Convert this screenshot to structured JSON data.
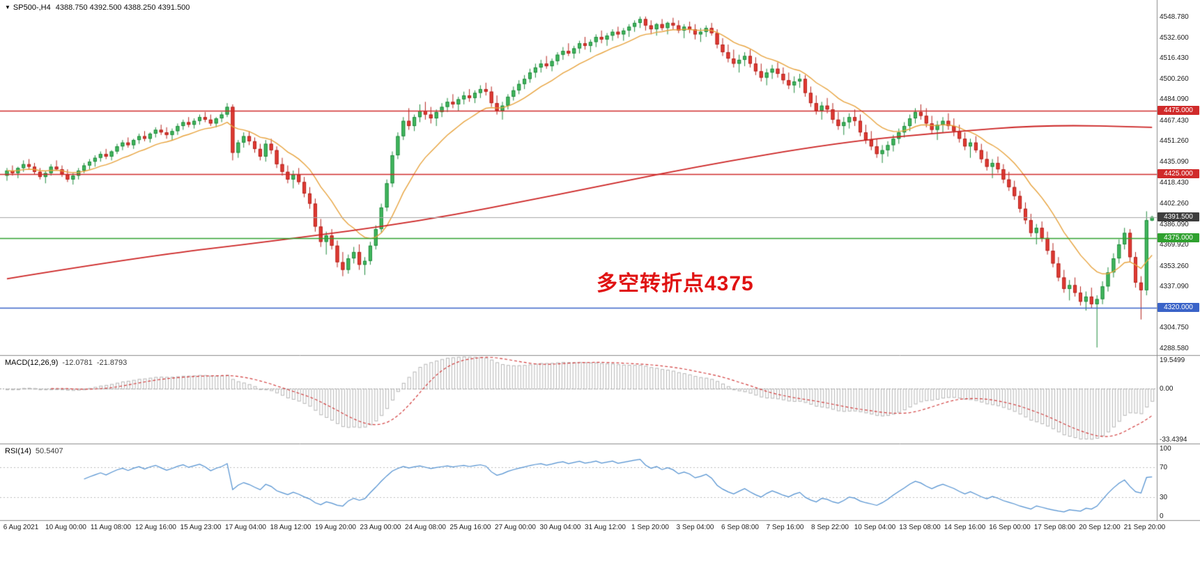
{
  "window": {
    "symbol_marker": "▼",
    "symbol": "SP500-,H4",
    "ohlc_line": "4388.750 4392.500 4388.250 4391.500"
  },
  "annotation": {
    "text": "多空转折点4375",
    "color": "#e01212"
  },
  "price_axis": {
    "ticks": [
      "4548.780",
      "4532.600",
      "4516.430",
      "4500.260",
      "4484.090",
      "4467.430",
      "4451.260",
      "4435.090",
      "4418.430",
      "4402.260",
      "4386.090",
      "4369.920",
      "4353.260",
      "4337.090",
      "4320.920",
      "4304.750",
      "4288.580"
    ]
  },
  "time_axis": {
    "labels": [
      "6 Aug 2021",
      "10 Aug 00:00",
      "11 Aug 08:00",
      "12 Aug 16:00",
      "15 Aug 23:00",
      "17 Aug 04:00",
      "18 Aug 12:00",
      "19 Aug 20:00",
      "23 Aug 00:00",
      "24 Aug 08:00",
      "25 Aug 16:00",
      "27 Aug 00:00",
      "30 Aug 04:00",
      "31 Aug 12:00",
      "1 Sep 20:00",
      "3 Sep 04:00",
      "6 Sep 08:00",
      "7 Sep 16:00",
      "8 Sep 22:00",
      "10 Sep 04:00",
      "13 Sep 08:00",
      "14 Sep 16:00",
      "16 Sep 00:00",
      "17 Sep 08:00",
      "20 Sep 12:00",
      "21 Sep 20:00"
    ]
  },
  "levels": [
    {
      "label": "4475.000",
      "price": 4475.0,
      "color": "#d02a2a"
    },
    {
      "label": "4425.000",
      "price": 4425.0,
      "color": "#d02a2a"
    },
    {
      "label": "4375.000",
      "price": 4375.0,
      "color": "#2fa12f"
    },
    {
      "label": "4320.000",
      "price": 4320.0,
      "color": "#3a63c8"
    }
  ],
  "current_price": {
    "label": "4391.500",
    "price": 4391.5,
    "line_color": "#a6a6a6",
    "tag_bg": "#3d3d3d"
  },
  "macd_panel": {
    "title": "MACD(12,26,9)",
    "main_value": "-12.0781",
    "signal_value": "-21.8793",
    "axis_ticks": [
      {
        "label": "19.5499",
        "value": 19.5499
      },
      {
        "label": "0.00",
        "value": 0
      },
      {
        "label": "-33.4394",
        "value": -33.4394
      }
    ],
    "range": [
      -35,
      21
    ]
  },
  "rsi_panel": {
    "title": "RSI(14)",
    "value": "50.5407",
    "axis_ticks": [
      {
        "label": "100",
        "value": 100
      },
      {
        "label": "70",
        "value": 70
      },
      {
        "label": "30",
        "value": 30
      },
      {
        "label": "0",
        "value": 0
      }
    ],
    "levels": [
      70,
      30
    ]
  },
  "colors": {
    "bull_fill": "#42b85e",
    "bull_stroke": "#1e8a3c",
    "bear_fill": "#e13b34",
    "bear_stroke": "#b5221c",
    "fast_ma": "#e8a33d",
    "slow_ma": "#cc2222",
    "macd_hist": "#b6b6b6",
    "macd_signal": "#d23b3b",
    "rsi_line": "#4f8fd0",
    "grid_dotted": "#bdbdbd",
    "separator": "#8c8c8c",
    "axis_text": "#1c1c1c"
  },
  "chart_data": {
    "type": "candlestick",
    "symbol": "SP500-",
    "timeframe": "H4",
    "title": "SP500-,H4 4388.750 4392.500 4388.250 4391.500",
    "visible_price_range": [
      4283,
      4562
    ],
    "ohlc_current": {
      "open": 4388.75,
      "high": 4392.5,
      "low": 4388.25,
      "close": 4391.5
    },
    "hlines": [
      4475.0,
      4425.0,
      4375.0,
      4320.0
    ],
    "candles": [
      [
        4424,
        4430,
        4420,
        4428
      ],
      [
        4428,
        4432,
        4424,
        4426
      ],
      [
        4426,
        4431,
        4422,
        4430
      ],
      [
        4430,
        4436,
        4427,
        4433
      ],
      [
        4433,
        4437,
        4429,
        4431
      ],
      [
        4431,
        4434,
        4425,
        4427
      ],
      [
        4427,
        4430,
        4421,
        4423
      ],
      [
        4423,
        4428,
        4418,
        4426
      ],
      [
        4426,
        4433,
        4424,
        4431
      ],
      [
        4431,
        4436,
        4428,
        4429
      ],
      [
        4429,
        4432,
        4423,
        4425
      ],
      [
        4425,
        4429,
        4419,
        4421
      ],
      [
        4421,
        4426,
        4417,
        4424
      ],
      [
        4424,
        4430,
        4421,
        4428
      ],
      [
        4428,
        4434,
        4426,
        4432
      ],
      [
        4432,
        4437,
        4429,
        4435
      ],
      [
        4435,
        4440,
        4431,
        4438
      ],
      [
        4438,
        4443,
        4435,
        4441
      ],
      [
        4441,
        4445,
        4437,
        4439
      ],
      [
        4439,
        4444,
        4436,
        4443
      ],
      [
        4443,
        4449,
        4441,
        4447
      ],
      [
        4447,
        4452,
        4444,
        4450
      ],
      [
        4450,
        4454,
        4446,
        4448
      ],
      [
        4448,
        4453,
        4445,
        4452
      ],
      [
        4452,
        4457,
        4449,
        4455
      ],
      [
        4455,
        4459,
        4451,
        4453
      ],
      [
        4453,
        4458,
        4450,
        4457
      ],
      [
        4457,
        4462,
        4454,
        4460
      ],
      [
        4460,
        4464,
        4456,
        4458
      ],
      [
        4458,
        4462,
        4453,
        4456
      ],
      [
        4456,
        4461,
        4452,
        4459
      ],
      [
        4459,
        4465,
        4456,
        4463
      ],
      [
        4463,
        4468,
        4460,
        4466
      ],
      [
        4466,
        4470,
        4462,
        4464
      ],
      [
        4464,
        4469,
        4461,
        4467
      ],
      [
        4467,
        4472,
        4464,
        4470
      ],
      [
        4470,
        4474,
        4466,
        4468
      ],
      [
        4468,
        4472,
        4463,
        4465
      ],
      [
        4465,
        4470,
        4462,
        4469
      ],
      [
        4469,
        4474,
        4466,
        4472
      ],
      [
        4472,
        4481,
        4470,
        4478
      ],
      [
        4478,
        4480,
        4436,
        4442
      ],
      [
        4442,
        4452,
        4438,
        4450
      ],
      [
        4450,
        4458,
        4446,
        4455
      ],
      [
        4455,
        4459,
        4448,
        4451
      ],
      [
        4451,
        4454,
        4442,
        4445
      ],
      [
        4445,
        4449,
        4436,
        4439
      ],
      [
        4439,
        4452,
        4435,
        4449
      ],
      [
        4449,
        4453,
        4441,
        4444
      ],
      [
        4444,
        4447,
        4430,
        4433
      ],
      [
        4433,
        4438,
        4424,
        4427
      ],
      [
        4427,
        4432,
        4418,
        4421
      ],
      [
        4421,
        4428,
        4414,
        4425
      ],
      [
        4425,
        4430,
        4417,
        4419
      ],
      [
        4419,
        4423,
        4407,
        4410
      ],
      [
        4410,
        4415,
        4398,
        4402
      ],
      [
        4402,
        4406,
        4380,
        4384
      ],
      [
        4384,
        4390,
        4368,
        4372
      ],
      [
        4372,
        4380,
        4362,
        4377
      ],
      [
        4377,
        4382,
        4366,
        4369
      ],
      [
        4369,
        4373,
        4352,
        4356
      ],
      [
        4356,
        4364,
        4345,
        4350
      ],
      [
        4350,
        4362,
        4347,
        4359
      ],
      [
        4359,
        4368,
        4355,
        4364
      ],
      [
        4364,
        4370,
        4350,
        4354
      ],
      [
        4354,
        4360,
        4346,
        4357
      ],
      [
        4357,
        4372,
        4354,
        4369
      ],
      [
        4369,
        4385,
        4366,
        4382
      ],
      [
        4382,
        4402,
        4379,
        4399
      ],
      [
        4399,
        4421,
        4396,
        4418
      ],
      [
        4418,
        4443,
        4415,
        4440
      ],
      [
        4440,
        4458,
        4437,
        4455
      ],
      [
        4455,
        4470,
        4452,
        4467
      ],
      [
        4467,
        4477,
        4460,
        4463
      ],
      [
        4463,
        4472,
        4459,
        4470
      ],
      [
        4470,
        4480,
        4466,
        4475
      ],
      [
        4475,
        4482,
        4468,
        4472
      ],
      [
        4472,
        4478,
        4465,
        4469
      ],
      [
        4469,
        4476,
        4463,
        4474
      ],
      [
        4474,
        4481,
        4470,
        4478
      ],
      [
        4478,
        4485,
        4474,
        4482
      ],
      [
        4482,
        4488,
        4477,
        4480
      ],
      [
        4480,
        4486,
        4475,
        4484
      ],
      [
        4484,
        4490,
        4480,
        4487
      ],
      [
        4487,
        4492,
        4482,
        4485
      ],
      [
        4485,
        4491,
        4481,
        4489
      ],
      [
        4489,
        4495,
        4485,
        4492
      ],
      [
        4492,
        4497,
        4487,
        4490
      ],
      [
        4490,
        4494,
        4478,
        4481
      ],
      [
        4481,
        4487,
        4472,
        4475
      ],
      [
        4475,
        4482,
        4468,
        4479
      ],
      [
        4479,
        4488,
        4476,
        4486
      ],
      [
        4486,
        4494,
        4483,
        4491
      ],
      [
        4491,
        4499,
        4488,
        4496
      ],
      [
        4496,
        4503,
        4492,
        4500
      ],
      [
        4500,
        4508,
        4497,
        4505
      ],
      [
        4505,
        4512,
        4501,
        4509
      ],
      [
        4509,
        4515,
        4505,
        4512
      ],
      [
        4512,
        4518,
        4508,
        4510
      ],
      [
        4510,
        4516,
        4506,
        4514
      ],
      [
        4514,
        4521,
        4511,
        4519
      ],
      [
        4519,
        4525,
        4515,
        4522
      ],
      [
        4522,
        4528,
        4518,
        4520
      ],
      [
        4520,
        4526,
        4516,
        4524
      ],
      [
        4524,
        4530,
        4520,
        4528
      ],
      [
        4528,
        4533,
        4523,
        4526
      ],
      [
        4526,
        4531,
        4521,
        4529
      ],
      [
        4529,
        4535,
        4525,
        4533
      ],
      [
        4533,
        4538,
        4528,
        4531
      ],
      [
        4531,
        4536,
        4526,
        4534
      ],
      [
        4534,
        4539,
        4530,
        4537
      ],
      [
        4537,
        4541,
        4532,
        4535
      ],
      [
        4535,
        4540,
        4530,
        4538
      ],
      [
        4538,
        4543,
        4533,
        4541
      ],
      [
        4541,
        4546,
        4537,
        4544
      ],
      [
        4544,
        4549,
        4540,
        4547
      ],
      [
        4547,
        4549,
        4538,
        4542
      ],
      [
        4542,
        4546,
        4535,
        4539
      ],
      [
        4539,
        4544,
        4534,
        4543
      ],
      [
        4543,
        4547,
        4538,
        4540
      ],
      [
        4540,
        4545,
        4535,
        4544
      ],
      [
        4544,
        4548,
        4539,
        4542
      ],
      [
        4542,
        4546,
        4536,
        4538
      ],
      [
        4538,
        4543,
        4532,
        4541
      ],
      [
        4541,
        4545,
        4536,
        4539
      ],
      [
        4539,
        4543,
        4531,
        4535
      ],
      [
        4535,
        4540,
        4529,
        4537
      ],
      [
        4537,
        4542,
        4533,
        4540
      ],
      [
        4540,
        4544,
        4534,
        4536
      ],
      [
        4536,
        4539,
        4524,
        4527
      ],
      [
        4527,
        4532,
        4518,
        4521
      ],
      [
        4521,
        4527,
        4513,
        4516
      ],
      [
        4516,
        4523,
        4509,
        4512
      ],
      [
        4512,
        4519,
        4505,
        4515
      ],
      [
        4515,
        4521,
        4510,
        4518
      ],
      [
        4518,
        4523,
        4509,
        4512
      ],
      [
        4512,
        4517,
        4503,
        4506
      ],
      [
        4506,
        4512,
        4498,
        4501
      ],
      [
        4501,
        4508,
        4495,
        4505
      ],
      [
        4505,
        4511,
        4500,
        4508
      ],
      [
        4508,
        4513,
        4501,
        4504
      ],
      [
        4504,
        4509,
        4496,
        4499
      ],
      [
        4499,
        4505,
        4492,
        4495
      ],
      [
        4495,
        4502,
        4489,
        4498
      ],
      [
        4498,
        4504,
        4493,
        4500
      ],
      [
        4500,
        4503,
        4486,
        4489
      ],
      [
        4489,
        4494,
        4478,
        4481
      ],
      [
        4481,
        4487,
        4472,
        4475
      ],
      [
        4475,
        4482,
        4468,
        4479
      ],
      [
        4479,
        4485,
        4473,
        4476
      ],
      [
        4476,
        4481,
        4465,
        4468
      ],
      [
        4468,
        4474,
        4460,
        4463
      ],
      [
        4463,
        4470,
        4456,
        4466
      ],
      [
        4466,
        4473,
        4461,
        4470
      ],
      [
        4470,
        4476,
        4463,
        4467
      ],
      [
        4467,
        4472,
        4455,
        4458
      ],
      [
        4458,
        4464,
        4449,
        4452
      ],
      [
        4452,
        4459,
        4444,
        4447
      ],
      [
        4447,
        4453,
        4438,
        4441
      ],
      [
        4441,
        4448,
        4434,
        4444
      ],
      [
        4444,
        4451,
        4439,
        4448
      ],
      [
        4448,
        4456,
        4443,
        4453
      ],
      [
        4453,
        4461,
        4449,
        4458
      ],
      [
        4458,
        4466,
        4454,
        4463
      ],
      [
        4463,
        4472,
        4459,
        4469
      ],
      [
        4469,
        4477,
        4465,
        4474
      ],
      [
        4474,
        4480,
        4468,
        4471
      ],
      [
        4471,
        4477,
        4462,
        4465
      ],
      [
        4465,
        4471,
        4457,
        4460
      ],
      [
        4460,
        4467,
        4452,
        4464
      ],
      [
        4464,
        4470,
        4458,
        4467
      ],
      [
        4467,
        4473,
        4460,
        4463
      ],
      [
        4463,
        4469,
        4455,
        4459
      ],
      [
        4459,
        4464,
        4450,
        4453
      ],
      [
        4453,
        4458,
        4444,
        4447
      ],
      [
        4447,
        4453,
        4438,
        4450
      ],
      [
        4450,
        4455,
        4442,
        4444
      ],
      [
        4444,
        4449,
        4434,
        4437
      ],
      [
        4437,
        4443,
        4428,
        4431
      ],
      [
        4431,
        4437,
        4422,
        4434
      ],
      [
        4434,
        4439,
        4426,
        4429
      ],
      [
        4429,
        4433,
        4418,
        4421
      ],
      [
        4421,
        4427,
        4412,
        4415
      ],
      [
        4415,
        4420,
        4405,
        4408
      ],
      [
        4408,
        4412,
        4395,
        4398
      ],
      [
        4398,
        4403,
        4386,
        4389
      ],
      [
        4389,
        4394,
        4376,
        4379
      ],
      [
        4379,
        4386,
        4370,
        4383
      ],
      [
        4383,
        4388,
        4372,
        4375
      ],
      [
        4375,
        4380,
        4362,
        4365
      ],
      [
        4365,
        4371,
        4352,
        4355
      ],
      [
        4355,
        4360,
        4341,
        4344
      ],
      [
        4344,
        4350,
        4332,
        4335
      ],
      [
        4335,
        4342,
        4326,
        4338
      ],
      [
        4338,
        4344,
        4329,
        4332
      ],
      [
        4332,
        4337,
        4322,
        4325
      ],
      [
        4325,
        4333,
        4318,
        4329
      ],
      [
        4329,
        4336,
        4320,
        4323
      ],
      [
        4323,
        4330,
        4289,
        4327
      ],
      [
        4327,
        4341,
        4323,
        4337
      ],
      [
        4337,
        4352,
        4333,
        4348
      ],
      [
        4348,
        4363,
        4344,
        4359
      ],
      [
        4359,
        4374,
        4355,
        4370
      ],
      [
        4370,
        4383,
        4366,
        4379
      ],
      [
        4379,
        4382,
        4356,
        4360
      ],
      [
        4360,
        4364,
        4336,
        4340
      ],
      [
        4340,
        4345,
        4311,
        4334
      ],
      [
        4334,
        4396,
        4330,
        4389
      ],
      [
        4388.75,
        4392.5,
        4388.25,
        4391.5
      ]
    ],
    "overlays": {
      "fast_ma": {
        "type": "ema",
        "period": 13
      },
      "slow_ma": {
        "type": "smoothed",
        "anchors": [
          [
            0,
            4343
          ],
          [
            24,
            4360
          ],
          [
            49,
            4373
          ],
          [
            75,
            4388
          ],
          [
            100,
            4409
          ],
          [
            125,
            4431
          ],
          [
            151,
            4450
          ],
          [
            170,
            4458
          ],
          [
            189,
            4464
          ],
          [
            208,
            4462
          ]
        ]
      }
    },
    "indicators": {
      "macd": {
        "params": "12,26,9",
        "main": -12.0781,
        "signal": -21.8793
      },
      "rsi": {
        "period": 14,
        "value": 50.5407
      }
    }
  }
}
